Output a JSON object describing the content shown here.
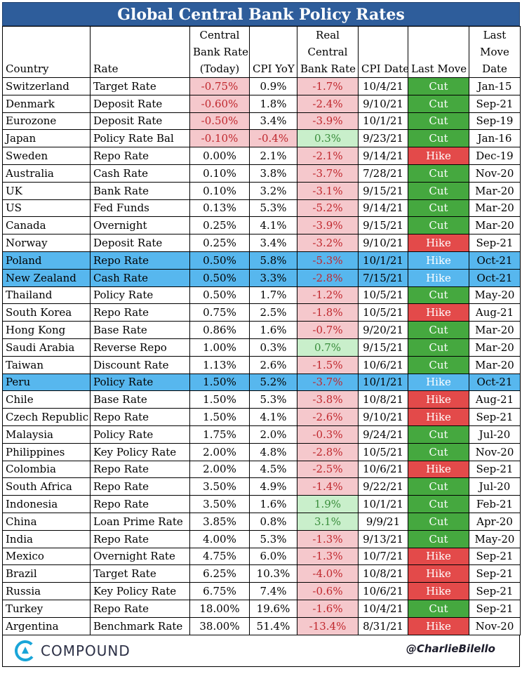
{
  "title": "Global Central Bank Policy Rates",
  "headers": {
    "country": "Country",
    "rate": "Rate",
    "cb_rate_1": "Central",
    "cb_rate_2": "Bank Rate",
    "cb_rate_3": "(Today)",
    "cpi": "CPI YoY",
    "real_1": "Real",
    "real_2": "Central",
    "real_3": "Bank Rate",
    "cpi_date": "CPI Date",
    "last_move": "Last Move",
    "lmd_1": "Last",
    "lmd_2": "Move",
    "lmd_3": "Date"
  },
  "colors": {
    "title_bg": "#2e5d9b",
    "highlight_row": "#57b7ee",
    "negative_bg": "#f5c8cc",
    "negative_text": "#c0272d",
    "positive_bg": "#c9efcb",
    "positive_text": "#3a8d3c",
    "cut": "#45a83f",
    "hike": "#e34a4a"
  },
  "rows": [
    {
      "country": "Switzerland",
      "rate": "Target Rate",
      "cb": "-0.75%",
      "cpi": "0.9%",
      "real": "-1.7%",
      "cpi_date": "10/4/21",
      "move": "Cut",
      "move_date": "Jan-15",
      "cb_neg": true,
      "real_sign": "neg",
      "hl": false
    },
    {
      "country": "Denmark",
      "rate": "Deposit Rate",
      "cb": "-0.60%",
      "cpi": "1.8%",
      "real": "-2.4%",
      "cpi_date": "9/10/21",
      "move": "Cut",
      "move_date": "Sep-21",
      "cb_neg": true,
      "real_sign": "neg",
      "hl": false
    },
    {
      "country": "Eurozone",
      "rate": "Deposit Rate",
      "cb": "-0.50%",
      "cpi": "3.4%",
      "real": "-3.9%",
      "cpi_date": "10/1/21",
      "move": "Cut",
      "move_date": "Sep-19",
      "cb_neg": true,
      "real_sign": "neg",
      "hl": false
    },
    {
      "country": "Japan",
      "rate": "Policy Rate Bal",
      "cb": "-0.10%",
      "cpi": "-0.4%",
      "real": "0.3%",
      "cpi_date": "9/23/21",
      "move": "Cut",
      "move_date": "Jan-16",
      "cb_neg": true,
      "cpi_neg": true,
      "real_sign": "pos",
      "hl": false
    },
    {
      "country": "Sweden",
      "rate": "Repo Rate",
      "cb": "0.00%",
      "cpi": "2.1%",
      "real": "-2.1%",
      "cpi_date": "9/14/21",
      "move": "Hike",
      "move_date": "Dec-19",
      "real_sign": "neg",
      "hl": false
    },
    {
      "country": "Australia",
      "rate": "Cash Rate",
      "cb": "0.10%",
      "cpi": "3.8%",
      "real": "-3.7%",
      "cpi_date": "7/28/21",
      "move": "Cut",
      "move_date": "Nov-20",
      "real_sign": "neg",
      "hl": false
    },
    {
      "country": "UK",
      "rate": "Bank Rate",
      "cb": "0.10%",
      "cpi": "3.2%",
      "real": "-3.1%",
      "cpi_date": "9/15/21",
      "move": "Cut",
      "move_date": "Mar-20",
      "real_sign": "neg",
      "hl": false
    },
    {
      "country": "US",
      "rate": "Fed Funds",
      "cb": "0.13%",
      "cpi": "5.3%",
      "real": "-5.2%",
      "cpi_date": "9/14/21",
      "move": "Cut",
      "move_date": "Mar-20",
      "real_sign": "neg",
      "hl": false
    },
    {
      "country": "Canada",
      "rate": "Overnight",
      "cb": "0.25%",
      "cpi": "4.1%",
      "real": "-3.9%",
      "cpi_date": "9/15/21",
      "move": "Cut",
      "move_date": "Mar-20",
      "real_sign": "neg",
      "hl": false
    },
    {
      "country": "Norway",
      "rate": "Deposit Rate",
      "cb": "0.25%",
      "cpi": "3.4%",
      "real": "-3.2%",
      "cpi_date": "9/10/21",
      "move": "Hike",
      "move_date": "Sep-21",
      "real_sign": "neg",
      "hl": false
    },
    {
      "country": "Poland",
      "rate": "Repo Rate",
      "cb": "0.50%",
      "cpi": "5.8%",
      "real": "-5.3%",
      "cpi_date": "10/1/21",
      "move": "Hike",
      "move_date": "Oct-21",
      "real_sign": "neg",
      "hl": true
    },
    {
      "country": "New Zealand",
      "rate": "Cash Rate",
      "cb": "0.50%",
      "cpi": "3.3%",
      "real": "-2.8%",
      "cpi_date": "7/15/21",
      "move": "Hike",
      "move_date": "Oct-21",
      "real_sign": "neg",
      "hl": true
    },
    {
      "country": "Thailand",
      "rate": "Policy Rate",
      "cb": "0.50%",
      "cpi": "1.7%",
      "real": "-1.2%",
      "cpi_date": "10/5/21",
      "move": "Cut",
      "move_date": "May-20",
      "real_sign": "neg",
      "hl": false
    },
    {
      "country": "South Korea",
      "rate": "Repo Rate",
      "cb": "0.75%",
      "cpi": "2.5%",
      "real": "-1.8%",
      "cpi_date": "10/5/21",
      "move": "Hike",
      "move_date": "Aug-21",
      "real_sign": "neg",
      "hl": false
    },
    {
      "country": "Hong Kong",
      "rate": "Base Rate",
      "cb": "0.86%",
      "cpi": "1.6%",
      "real": "-0.7%",
      "cpi_date": "9/20/21",
      "move": "Cut",
      "move_date": "Mar-20",
      "real_sign": "neg",
      "hl": false
    },
    {
      "country": "Saudi Arabia",
      "rate": "Reverse Repo",
      "cb": "1.00%",
      "cpi": "0.3%",
      "real": "0.7%",
      "cpi_date": "9/15/21",
      "move": "Cut",
      "move_date": "Mar-20",
      "real_sign": "pos",
      "hl": false
    },
    {
      "country": "Taiwan",
      "rate": "Discount Rate",
      "cb": "1.13%",
      "cpi": "2.6%",
      "real": "-1.5%",
      "cpi_date": "10/6/21",
      "move": "Cut",
      "move_date": "Mar-20",
      "real_sign": "neg",
      "hl": false
    },
    {
      "country": "Peru",
      "rate": "Policy Rate",
      "cb": "1.50%",
      "cpi": "5.2%",
      "real": "-3.7%",
      "cpi_date": "10/1/21",
      "move": "Hike",
      "move_date": "Oct-21",
      "real_sign": "neg",
      "hl": true
    },
    {
      "country": "Chile",
      "rate": "Base Rate",
      "cb": "1.50%",
      "cpi": "5.3%",
      "real": "-3.8%",
      "cpi_date": "10/8/21",
      "move": "Hike",
      "move_date": "Aug-21",
      "real_sign": "neg",
      "hl": false
    },
    {
      "country": "Czech Republic",
      "rate": "Repo Rate",
      "cb": "1.50%",
      "cpi": "4.1%",
      "real": "-2.6%",
      "cpi_date": "9/10/21",
      "move": "Hike",
      "move_date": "Sep-21",
      "real_sign": "neg",
      "hl": false
    },
    {
      "country": "Malaysia",
      "rate": "Policy Rate",
      "cb": "1.75%",
      "cpi": "2.0%",
      "real": "-0.3%",
      "cpi_date": "9/24/21",
      "move": "Cut",
      "move_date": "Jul-20",
      "real_sign": "neg",
      "hl": false
    },
    {
      "country": "Philippines",
      "rate": "Key Policy Rate",
      "cb": "2.00%",
      "cpi": "4.8%",
      "real": "-2.8%",
      "cpi_date": "10/5/21",
      "move": "Cut",
      "move_date": "Nov-20",
      "real_sign": "neg",
      "hl": false
    },
    {
      "country": "Colombia",
      "rate": "Repo Rate",
      "cb": "2.00%",
      "cpi": "4.5%",
      "real": "-2.5%",
      "cpi_date": "10/6/21",
      "move": "Hike",
      "move_date": "Sep-21",
      "real_sign": "neg",
      "hl": false
    },
    {
      "country": "South Africa",
      "rate": "Repo Rate",
      "cb": "3.50%",
      "cpi": "4.9%",
      "real": "-1.4%",
      "cpi_date": "9/22/21",
      "move": "Cut",
      "move_date": "Jul-20",
      "real_sign": "neg",
      "hl": false
    },
    {
      "country": "Indonesia",
      "rate": "Repo Rate",
      "cb": "3.50%",
      "cpi": "1.6%",
      "real": "1.9%",
      "cpi_date": "10/1/21",
      "move": "Cut",
      "move_date": "Feb-21",
      "real_sign": "pos",
      "hl": false
    },
    {
      "country": "China",
      "rate": "Loan Prime Rate",
      "cb": "3.85%",
      "cpi": "0.8%",
      "real": "3.1%",
      "cpi_date": "9/9/21",
      "move": "Cut",
      "move_date": "Apr-20",
      "real_sign": "pos",
      "hl": false
    },
    {
      "country": "India",
      "rate": "Repo Rate",
      "cb": "4.00%",
      "cpi": "5.3%",
      "real": "-1.3%",
      "cpi_date": "9/13/21",
      "move": "Cut",
      "move_date": "May-20",
      "real_sign": "neg",
      "hl": false
    },
    {
      "country": "Mexico",
      "rate": "Overnight Rate",
      "cb": "4.75%",
      "cpi": "6.0%",
      "real": "-1.3%",
      "cpi_date": "10/7/21",
      "move": "Hike",
      "move_date": "Sep-21",
      "real_sign": "neg",
      "hl": false
    },
    {
      "country": "Brazil",
      "rate": "Target Rate",
      "cb": "6.25%",
      "cpi": "10.3%",
      "real": "-4.0%",
      "cpi_date": "10/8/21",
      "move": "Hike",
      "move_date": "Sep-21",
      "real_sign": "neg",
      "hl": false
    },
    {
      "country": "Russia",
      "rate": "Key Policy Rate",
      "cb": "6.75%",
      "cpi": "7.4%",
      "real": "-0.6%",
      "cpi_date": "10/6/21",
      "move": "Hike",
      "move_date": "Sep-21",
      "real_sign": "neg",
      "hl": false
    },
    {
      "country": "Turkey",
      "rate": "Repo Rate",
      "cb": "18.00%",
      "cpi": "19.6%",
      "real": "-1.6%",
      "cpi_date": "10/4/21",
      "move": "Cut",
      "move_date": "Sep-21",
      "real_sign": "neg",
      "hl": false
    },
    {
      "country": "Argentina",
      "rate": "Benchmark Rate",
      "cb": "38.00%",
      "cpi": "51.4%",
      "real": "-13.4%",
      "cpi_date": "8/31/21",
      "move": "Hike",
      "move_date": "Nov-20",
      "real_sign": "neg",
      "hl": false
    }
  ],
  "footer": {
    "logo_text": "COMPOUND",
    "logo_icon": "compound-c-icon",
    "handle": "@CharlieBilello"
  }
}
